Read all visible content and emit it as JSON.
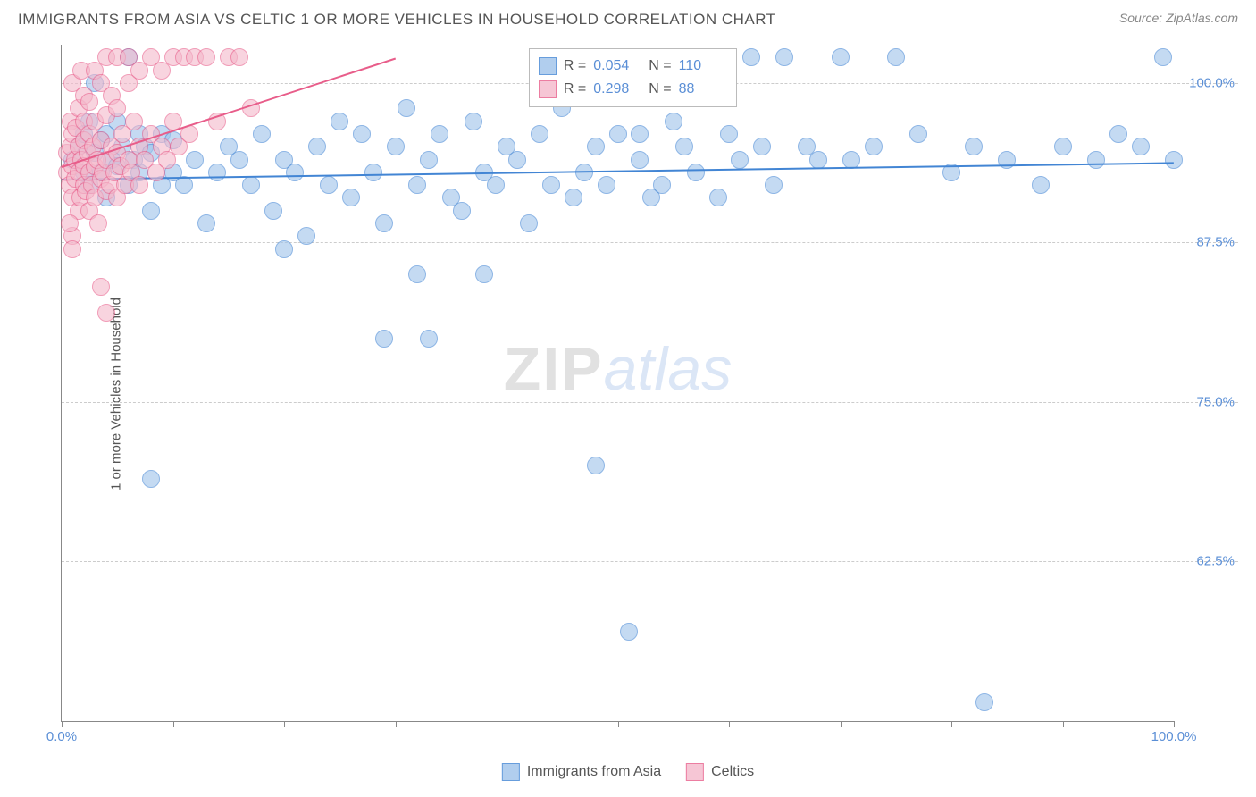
{
  "title": "IMMIGRANTS FROM ASIA VS CELTIC 1 OR MORE VEHICLES IN HOUSEHOLD CORRELATION CHART",
  "source_label": "Source:",
  "source_value": "ZipAtlas.com",
  "ylabel": "1 or more Vehicles in Household",
  "watermark_a": "ZIP",
  "watermark_b": "atlas",
  "chart": {
    "type": "scatter",
    "xlim": [
      0,
      100
    ],
    "ylim": [
      50,
      103
    ],
    "x_ticks": [
      0,
      10,
      20,
      30,
      40,
      50,
      60,
      70,
      80,
      90,
      100
    ],
    "x_tick_labels": {
      "0": "0.0%",
      "100": "100.0%"
    },
    "y_gridlines": [
      62.5,
      75.0,
      87.5,
      100.0
    ],
    "y_tick_labels": [
      "62.5%",
      "75.0%",
      "87.5%",
      "100.0%"
    ],
    "grid_color": "#cccccc",
    "axis_color": "#888888",
    "background_color": "#ffffff",
    "tick_label_color": "#5b8fd6",
    "label_color": "#555555",
    "marker_radius": 10,
    "marker_stroke_width": 1.2,
    "marker_fill_opacity": 0.25,
    "trend_line_width": 2,
    "series": [
      {
        "name": "Immigrants from Asia",
        "color_stroke": "#4285d4",
        "color_fill": "#9ec3ea",
        "R": "0.054",
        "N": "110",
        "trend": {
          "x1": 0,
          "y1": 92.5,
          "x2": 100,
          "y2": 93.8
        },
        "points": [
          [
            1,
            94
          ],
          [
            1.5,
            95
          ],
          [
            2,
            93
          ],
          [
            2,
            96
          ],
          [
            2.5,
            92
          ],
          [
            2.5,
            97
          ],
          [
            3,
            94.5
          ],
          [
            3,
            100
          ],
          [
            3.5,
            93
          ],
          [
            3.5,
            95.5
          ],
          [
            4,
            91
          ],
          [
            4,
            96
          ],
          [
            4.5,
            94
          ],
          [
            5,
            93.5
          ],
          [
            5,
            97
          ],
          [
            5.5,
            95
          ],
          [
            6,
            92
          ],
          [
            6,
            102
          ],
          [
            6.5,
            94
          ],
          [
            7,
            93
          ],
          [
            7,
            96
          ],
          [
            7.5,
            95
          ],
          [
            8,
            90
          ],
          [
            8,
            94.5
          ],
          [
            8,
            69
          ],
          [
            9,
            92
          ],
          [
            9,
            96
          ],
          [
            10,
            93
          ],
          [
            10,
            95.5
          ],
          [
            11,
            92
          ],
          [
            12,
            94
          ],
          [
            13,
            89
          ],
          [
            14,
            93
          ],
          [
            15,
            95
          ],
          [
            16,
            94
          ],
          [
            17,
            92
          ],
          [
            18,
            96
          ],
          [
            19,
            90
          ],
          [
            20,
            94
          ],
          [
            20,
            87
          ],
          [
            21,
            93
          ],
          [
            22,
            88
          ],
          [
            23,
            95
          ],
          [
            24,
            92
          ],
          [
            25,
            97
          ],
          [
            26,
            91
          ],
          [
            27,
            96
          ],
          [
            28,
            93
          ],
          [
            29,
            89
          ],
          [
            29,
            80
          ],
          [
            30,
            95
          ],
          [
            31,
            98
          ],
          [
            32,
            92
          ],
          [
            32,
            85
          ],
          [
            33,
            94
          ],
          [
            33,
            80
          ],
          [
            34,
            96
          ],
          [
            35,
            91
          ],
          [
            36,
            90
          ],
          [
            37,
            97
          ],
          [
            38,
            93
          ],
          [
            38,
            85
          ],
          [
            39,
            92
          ],
          [
            40,
            95
          ],
          [
            41,
            94
          ],
          [
            42,
            89
          ],
          [
            43,
            96
          ],
          [
            44,
            92
          ],
          [
            45,
            98
          ],
          [
            46,
            91
          ],
          [
            47,
            93
          ],
          [
            48,
            95
          ],
          [
            48,
            70
          ],
          [
            49,
            92
          ],
          [
            50,
            96
          ],
          [
            50,
            102
          ],
          [
            51,
            57
          ],
          [
            52,
            96
          ],
          [
            52,
            94
          ],
          [
            53,
            91
          ],
          [
            54,
            92
          ],
          [
            55,
            97
          ],
          [
            56,
            95
          ],
          [
            57,
            93
          ],
          [
            58,
            102
          ],
          [
            59,
            91
          ],
          [
            60,
            96
          ],
          [
            61,
            94
          ],
          [
            62,
            102
          ],
          [
            63,
            95
          ],
          [
            64,
            92
          ],
          [
            65,
            102
          ],
          [
            67,
            95
          ],
          [
            68,
            94
          ],
          [
            70,
            102
          ],
          [
            71,
            94
          ],
          [
            73,
            95
          ],
          [
            75,
            102
          ],
          [
            77,
            96
          ],
          [
            83,
            51.5
          ],
          [
            80,
            93
          ],
          [
            82,
            95
          ],
          [
            85,
            94
          ],
          [
            88,
            92
          ],
          [
            90,
            95
          ],
          [
            93,
            94
          ],
          [
            95,
            96
          ],
          [
            97,
            95
          ],
          [
            99,
            102
          ],
          [
            100,
            94
          ]
        ]
      },
      {
        "name": "Celtics",
        "color_stroke": "#e85d8a",
        "color_fill": "#f4b8cb",
        "R": "0.298",
        "N": "88",
        "trend": {
          "x1": 0,
          "y1": 93.5,
          "x2": 30,
          "y2": 102
        },
        "points": [
          [
            0.5,
            93
          ],
          [
            0.5,
            94.5
          ],
          [
            0.7,
            92
          ],
          [
            0.8,
            95
          ],
          [
            0.8,
            97
          ],
          [
            1,
            91
          ],
          [
            1,
            93.5
          ],
          [
            1,
            96
          ],
          [
            1,
            100
          ],
          [
            1,
            88
          ],
          [
            1.2,
            94
          ],
          [
            1.2,
            92.5
          ],
          [
            1.3,
            96.5
          ],
          [
            1.5,
            90
          ],
          [
            1.5,
            93
          ],
          [
            1.5,
            95
          ],
          [
            1.5,
            98
          ],
          [
            1.7,
            91
          ],
          [
            1.8,
            94
          ],
          [
            1.8,
            101
          ],
          [
            2,
            92
          ],
          [
            2,
            93.5
          ],
          [
            2,
            95.5
          ],
          [
            2,
            97
          ],
          [
            2,
            99
          ],
          [
            2.2,
            91.5
          ],
          [
            2.3,
            94.5
          ],
          [
            2.5,
            90
          ],
          [
            2.5,
            93
          ],
          [
            2.5,
            96
          ],
          [
            2.5,
            98.5
          ],
          [
            2.7,
            92
          ],
          [
            2.8,
            95
          ],
          [
            3,
            91
          ],
          [
            3,
            93.5
          ],
          [
            3,
            97
          ],
          [
            3,
            101
          ],
          [
            3.2,
            94
          ],
          [
            3.3,
            89
          ],
          [
            3.5,
            92.5
          ],
          [
            3.5,
            95.5
          ],
          [
            3.5,
            100
          ],
          [
            3.7,
            93
          ],
          [
            4,
            91.5
          ],
          [
            4,
            94
          ],
          [
            4,
            97.5
          ],
          [
            4,
            102
          ],
          [
            4.3,
            92
          ],
          [
            4.5,
            95
          ],
          [
            4.5,
            99
          ],
          [
            4.7,
            93
          ],
          [
            5,
            91
          ],
          [
            5,
            94.5
          ],
          [
            5,
            98
          ],
          [
            5,
            102
          ],
          [
            5.3,
            93.5
          ],
          [
            5.5,
            96
          ],
          [
            5.7,
            92
          ],
          [
            6,
            94
          ],
          [
            6,
            100
          ],
          [
            6,
            102
          ],
          [
            6.3,
            93
          ],
          [
            6.5,
            97
          ],
          [
            7,
            92
          ],
          [
            7,
            95
          ],
          [
            7,
            101
          ],
          [
            7.5,
            94
          ],
          [
            8,
            96
          ],
          [
            8,
            102
          ],
          [
            8.5,
            93
          ],
          [
            9,
            95
          ],
          [
            9,
            101
          ],
          [
            9.5,
            94
          ],
          [
            10,
            97
          ],
          [
            10,
            102
          ],
          [
            10.5,
            95
          ],
          [
            11,
            102
          ],
          [
            11.5,
            96
          ],
          [
            12,
            102
          ],
          [
            13,
            102
          ],
          [
            14,
            97
          ],
          [
            15,
            102
          ],
          [
            16,
            102
          ],
          [
            17,
            98
          ],
          [
            4,
            82
          ],
          [
            3.5,
            84
          ],
          [
            1,
            87
          ],
          [
            0.7,
            89
          ]
        ]
      }
    ],
    "stats_legend": {
      "R_label": "R =",
      "N_label": "N ="
    },
    "bottom_legend_labels": [
      "Immigrants from Asia",
      "Celtics"
    ]
  }
}
